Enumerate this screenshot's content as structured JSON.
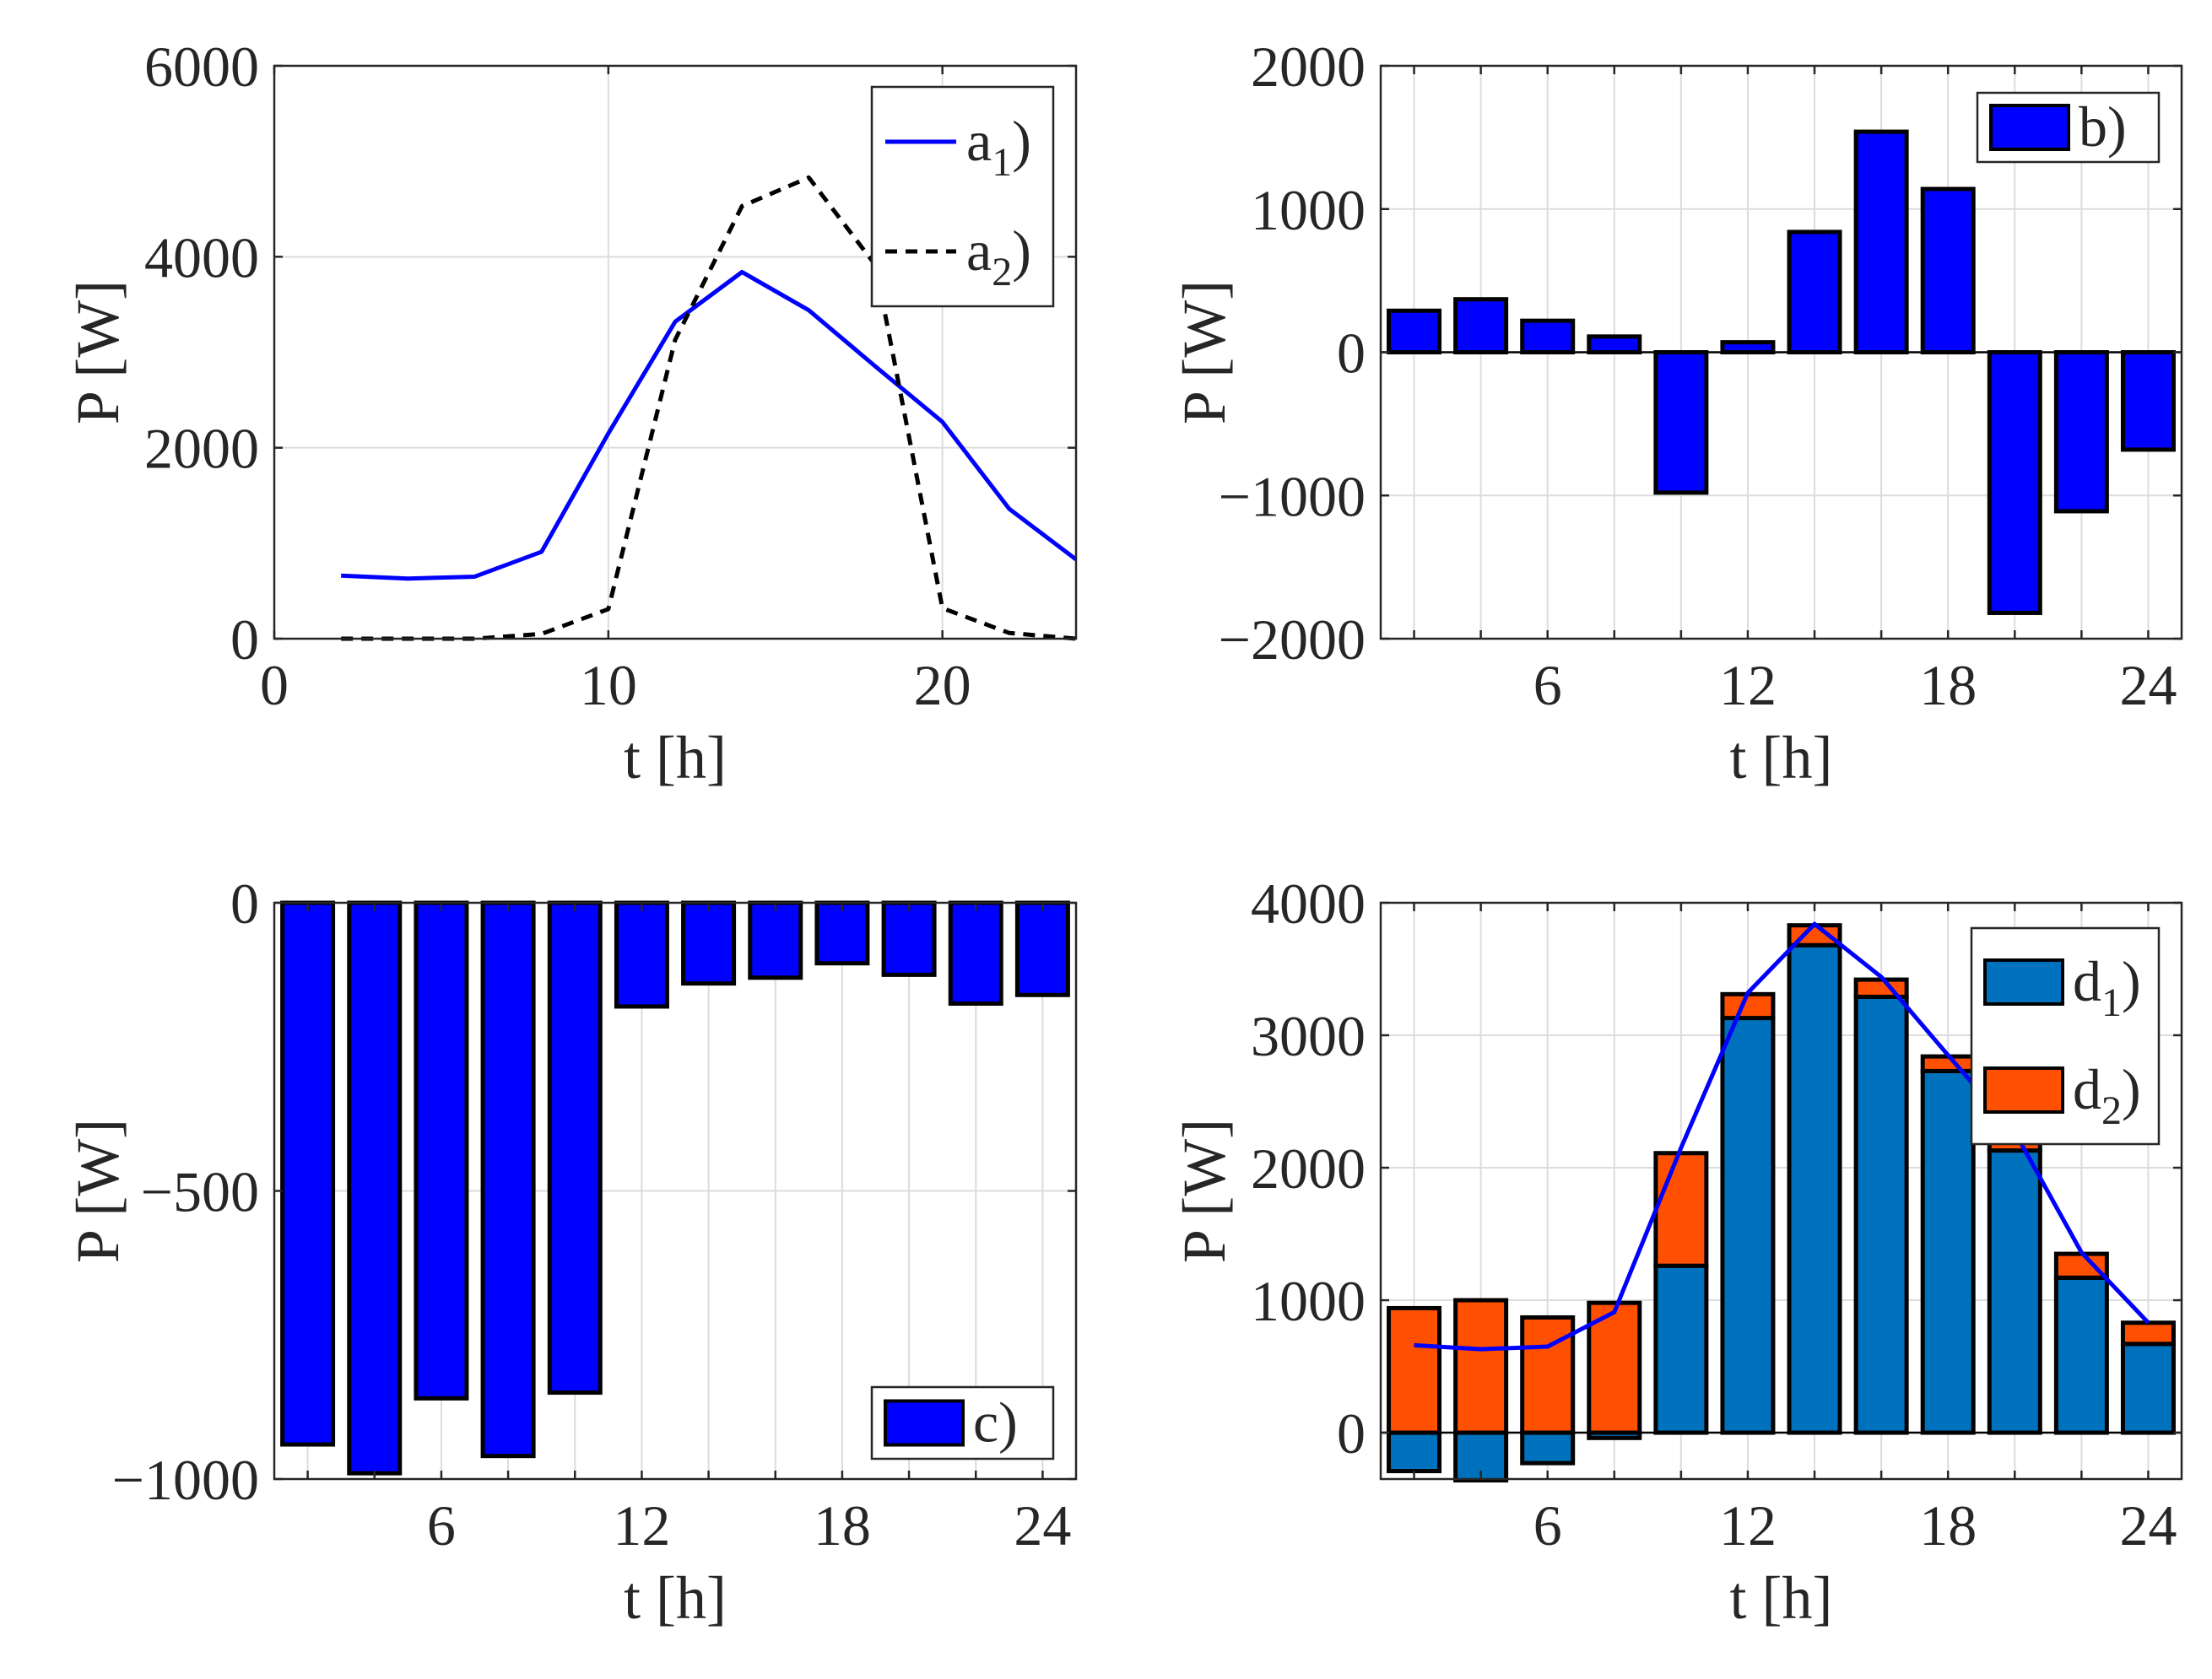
{
  "chart_data": [
    {
      "panel": "a",
      "type": "line",
      "xlabel": "t [h]",
      "ylabel": "P [W]",
      "xlim": [
        0,
        24
      ],
      "ylim": [
        0,
        6000
      ],
      "xticks": [
        0,
        10,
        20
      ],
      "yticks": [
        0,
        2000,
        4000,
        6000
      ],
      "grid": true,
      "legend_position": "top-right",
      "x": [
        2,
        4,
        6,
        8,
        10,
        12,
        14,
        16,
        18,
        20,
        22,
        24
      ],
      "series": [
        {
          "name": "a",
          "subscript": "1",
          "close": ")",
          "color": "#0000ff",
          "style": "solid",
          "values": [
            660,
            630,
            650,
            910,
            2150,
            3320,
            3840,
            3440,
            2850,
            2270,
            1360,
            830
          ]
        },
        {
          "name": "a",
          "subscript": "2",
          "close": ")",
          "color": "#000000",
          "style": "dashed",
          "values": [
            0,
            0,
            0,
            50,
            310,
            3130,
            4530,
            4830,
            3910,
            320,
            60,
            0
          ]
        }
      ]
    },
    {
      "panel": "b",
      "type": "bar",
      "xlabel": "t [h]",
      "ylabel": "P [W]",
      "xlim": [
        1,
        25
      ],
      "ylim": [
        -2000,
        2000
      ],
      "xticks": [
        6,
        12,
        18,
        24
      ],
      "yticks": [
        -2000,
        -1000,
        0,
        1000,
        2000
      ],
      "grid": true,
      "legend_position": "top-right",
      "x": [
        2,
        4,
        6,
        8,
        10,
        12,
        14,
        16,
        18,
        20,
        22,
        24
      ],
      "series": [
        {
          "name": "b)",
          "color": "#0000ff",
          "values": [
            290,
            370,
            220,
            110,
            -980,
            70,
            840,
            1540,
            1140,
            -1820,
            -1110,
            -680
          ]
        }
      ]
    },
    {
      "panel": "c",
      "type": "bar",
      "xlabel": "t [h]",
      "ylabel": "P [W]",
      "xlim": [
        1,
        25
      ],
      "ylim": [
        -1000,
        0
      ],
      "xticks": [
        6,
        12,
        18,
        24
      ],
      "yticks": [
        -1000,
        -500,
        0
      ],
      "grid": true,
      "legend_position": "bottom-right",
      "x": [
        2,
        4,
        6,
        8,
        10,
        12,
        14,
        16,
        18,
        20,
        22,
        24
      ],
      "series": [
        {
          "name": "c)",
          "color": "#0000ff",
          "values": [
            -940,
            -990,
            -860,
            -960,
            -850,
            -180,
            -140,
            -130,
            -105,
            -125,
            -175,
            -160
          ]
        }
      ]
    },
    {
      "panel": "d",
      "type": "bar",
      "stacked": true,
      "xlabel": "t [h]",
      "ylabel": "P [W]",
      "xlim": [
        1,
        25
      ],
      "ylim": [
        -350,
        4000
      ],
      "xticks": [
        6,
        12,
        18,
        24
      ],
      "yticks": [
        0,
        1000,
        2000,
        3000,
        4000
      ],
      "grid": true,
      "legend_position": "top-right",
      "x": [
        2,
        4,
        6,
        8,
        10,
        12,
        14,
        16,
        18,
        20,
        22,
        24
      ],
      "series": [
        {
          "name": "d",
          "subscript": "1",
          "close": ")",
          "color": "#0072bd",
          "values": [
            -290,
            -360,
            -230,
            -40,
            1260,
            3130,
            3680,
            3290,
            2730,
            2130,
            1170,
            670
          ]
        },
        {
          "name": "d",
          "subscript": "2",
          "close": ")",
          "color": "#ff4f00",
          "values": [
            940,
            1000,
            870,
            980,
            850,
            180,
            150,
            130,
            110,
            120,
            180,
            160
          ]
        }
      ],
      "overlay_line": {
        "color": "#0000ff",
        "values": [
          660,
          630,
          650,
          910,
          2150,
          3320,
          3840,
          3440,
          2850,
          2270,
          1360,
          830
        ]
      }
    }
  ]
}
